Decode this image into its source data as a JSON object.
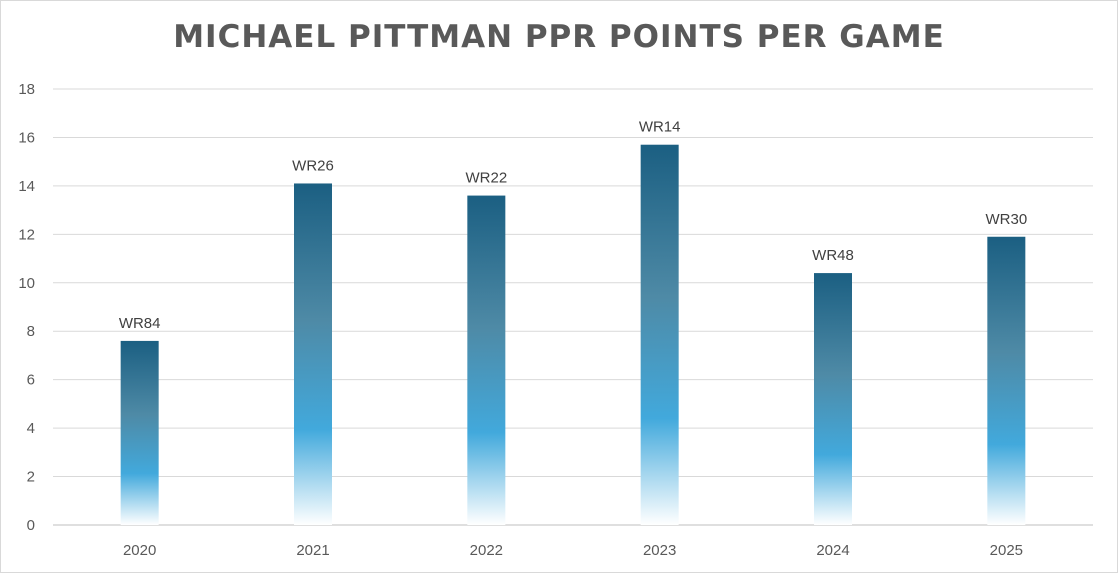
{
  "chart_data": {
    "type": "bar",
    "title": "MICHAEL PITTMAN PPR POINTS PER GAME",
    "categories": [
      "2020",
      "2021",
      "2022",
      "2023",
      "2024",
      "2025"
    ],
    "values": [
      7.6,
      14.1,
      13.6,
      15.7,
      10.4,
      11.9
    ],
    "data_labels": [
      "WR84",
      "WR26",
      "WR22",
      "WR14",
      "WR48",
      "WR30"
    ],
    "ylim": [
      0,
      18
    ],
    "yticks": [
      0,
      2,
      4,
      6,
      8,
      10,
      12,
      14,
      16,
      18
    ],
    "grid": true,
    "legend": "none",
    "colors": {
      "bar_top": "#1b5f82",
      "bar_mid": "#4e8aa6",
      "bar_bright": "#42a9dc",
      "bar_bottom": "#ffffff",
      "grid": "#d9d9d9",
      "text": "#595959"
    }
  }
}
